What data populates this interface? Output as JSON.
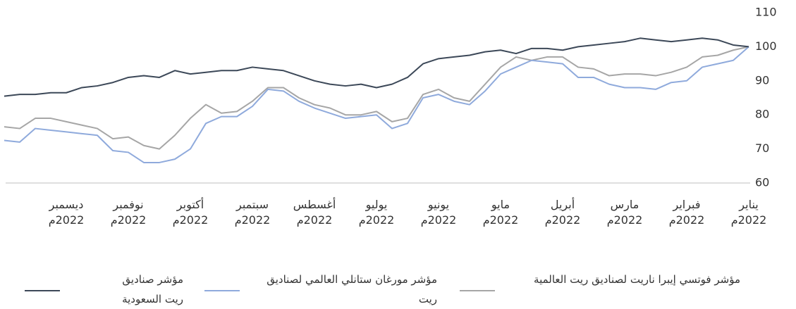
{
  "chart_data": {
    "type": "line",
    "categories": [
      "يناير\n2022م",
      null,
      null,
      null,
      "فبراير\n2022م",
      null,
      null,
      null,
      "مارس\n2022م",
      null,
      null,
      null,
      "أبريل\n2022م",
      null,
      null,
      null,
      "مايو\n2022م",
      null,
      null,
      null,
      "يونيو\n2022م",
      null,
      null,
      null,
      "يوليو\n2022م",
      null,
      null,
      null,
      "أغسطس\n2022م",
      null,
      null,
      null,
      "سبتمبر\n2022م",
      null,
      null,
      null,
      "أكتوبر\n2022م",
      null,
      null,
      null,
      "نوفمبر\n2022م",
      null,
      null,
      null,
      "ديسمبر\n2022م",
      null,
      null,
      null,
      null
    ],
    "ylim": [
      60,
      110
    ],
    "yticks": [
      60,
      70,
      80,
      90,
      100,
      110
    ],
    "series": [
      {
        "name": "مؤشر صناديق ريت السعودية",
        "color": "#3c4858",
        "values": [
          100,
          100.5,
          102,
          102.5,
          102,
          101.5,
          102,
          102.5,
          101.5,
          101,
          100.5,
          100,
          99,
          99.5,
          99.5,
          98,
          99,
          98.5,
          97.5,
          97,
          96.5,
          95,
          91,
          89,
          88,
          89,
          88.5,
          89,
          90,
          91.5,
          93,
          93.5,
          94,
          93,
          93,
          92.5,
          92,
          93,
          91,
          91.5,
          91,
          89.5,
          88.5,
          88,
          86.5,
          86.5,
          86,
          86,
          85.5
        ]
      },
      {
        "name": "مؤشر مورغان ستانلي العالمي لصناديق ريت",
        "color": "#8faadc",
        "values": [
          100,
          96,
          95,
          94,
          90,
          89.5,
          87.5,
          88,
          88,
          89,
          91,
          91,
          95,
          95.5,
          96,
          94,
          92,
          87,
          83,
          84,
          86,
          85,
          77.5,
          76,
          80,
          79.5,
          79,
          80.5,
          82,
          84,
          87,
          87.5,
          82.5,
          79.5,
          79.5,
          77.5,
          70,
          67,
          66,
          66,
          69,
          69.5,
          74,
          74.5,
          75,
          75.5,
          76,
          72,
          72.5
        ]
      },
      {
        "name": "مؤشر فوتسي إيبرا ناريت لصناديق ريت العالمية",
        "color": "#a6a6a6",
        "values": [
          100,
          99,
          97.5,
          97,
          94,
          92.5,
          91.5,
          92,
          92,
          91.5,
          93.5,
          94,
          97,
          97,
          96,
          97,
          94,
          89,
          84,
          85,
          87.5,
          86,
          79,
          78,
          81,
          80,
          80,
          82,
          83,
          85,
          88,
          88,
          84,
          81,
          80.5,
          83,
          79,
          74,
          70,
          71,
          73.5,
          73,
          76,
          77,
          78,
          79,
          79,
          76,
          76.5
        ]
      }
    ]
  }
}
